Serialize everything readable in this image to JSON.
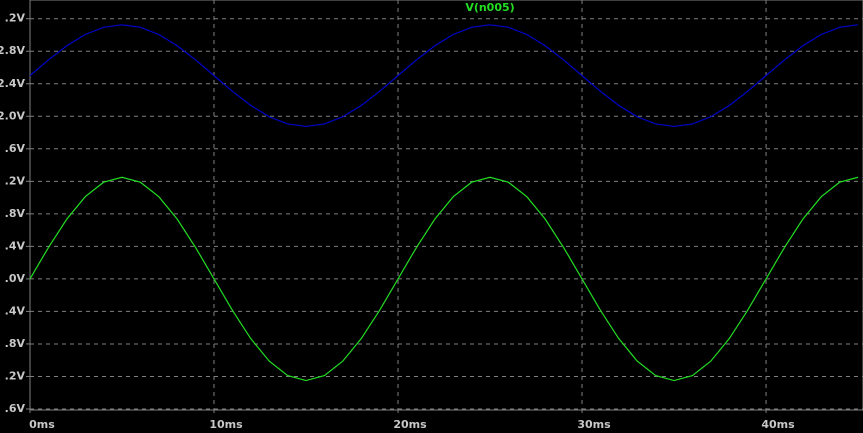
{
  "chart_data": {
    "type": "line",
    "title": "V(n005)",
    "x": [
      0,
      1,
      2,
      3,
      4,
      5,
      6,
      7,
      8,
      9,
      10,
      11,
      12,
      13,
      14,
      15,
      16,
      17,
      18,
      19,
      20,
      21,
      22,
      23,
      24,
      25,
      26,
      27,
      28,
      29,
      30,
      31,
      32,
      33,
      34,
      35,
      36,
      37,
      38,
      39,
      40,
      41,
      42,
      43,
      44,
      45
    ],
    "series": [
      {
        "color": "#0000cc",
        "values": [
          2.5,
          2.693,
          2.867,
          3.006,
          3.094,
          3.125,
          3.094,
          3.006,
          2.867,
          2.693,
          2.5,
          2.307,
          2.133,
          1.994,
          1.906,
          1.875,
          1.906,
          1.994,
          2.133,
          2.307,
          2.5,
          2.693,
          2.867,
          3.006,
          3.094,
          3.125,
          3.094,
          3.006,
          2.867,
          2.693,
          2.5,
          2.307,
          2.133,
          1.994,
          1.906,
          1.875,
          1.906,
          1.994,
          2.133,
          2.307,
          2.5,
          2.693,
          2.867,
          3.006,
          3.094,
          3.125
        ]
      },
      {
        "name": "V(n005)",
        "color": "#22dd22",
        "values": [
          0,
          0.386,
          0.735,
          1.011,
          1.189,
          1.25,
          1.189,
          1.011,
          0.735,
          0.386,
          0,
          -0.386,
          -0.735,
          -1.011,
          -1.189,
          -1.25,
          -1.189,
          -1.011,
          -0.735,
          -0.386,
          0,
          0.386,
          0.735,
          1.011,
          1.189,
          1.25,
          1.189,
          1.011,
          0.735,
          0.386,
          0,
          -0.386,
          -0.735,
          -1.011,
          -1.189,
          -1.25,
          -1.189,
          -1.011,
          -0.735,
          -0.386,
          0,
          0.386,
          0.735,
          1.011,
          1.189,
          1.25
        ]
      }
    ],
    "xlim": [
      0,
      45.27
    ],
    "xticks": [
      {
        "value": 0,
        "label": "0ms"
      },
      {
        "value": 10,
        "label": "10ms"
      },
      {
        "value": 20,
        "label": "20ms"
      },
      {
        "value": 30,
        "label": "30ms"
      },
      {
        "value": 40,
        "label": "40ms"
      }
    ],
    "ylim": [
      -1.6,
      3.43
    ],
    "yticks": [
      {
        "value": 3.2,
        "label": ".2V"
      },
      {
        "value": 2.8,
        "label": "2.8V"
      },
      {
        "value": 2.4,
        "label": "2.4V"
      },
      {
        "value": 2.0,
        "label": "2.0V"
      },
      {
        "value": 1.6,
        "label": ".6V"
      },
      {
        "value": 1.2,
        "label": ".2V"
      },
      {
        "value": 0.8,
        "label": ".8V"
      },
      {
        "value": 0.4,
        "label": ".4V"
      },
      {
        "value": 0.0,
        "label": ".0V"
      },
      {
        "value": -0.4,
        "label": ".4V"
      },
      {
        "value": -0.8,
        "label": ".8V"
      },
      {
        "value": -1.2,
        "label": ".2V"
      },
      {
        "value": -1.6,
        "label": ".6V"
      }
    ],
    "grid": true
  }
}
